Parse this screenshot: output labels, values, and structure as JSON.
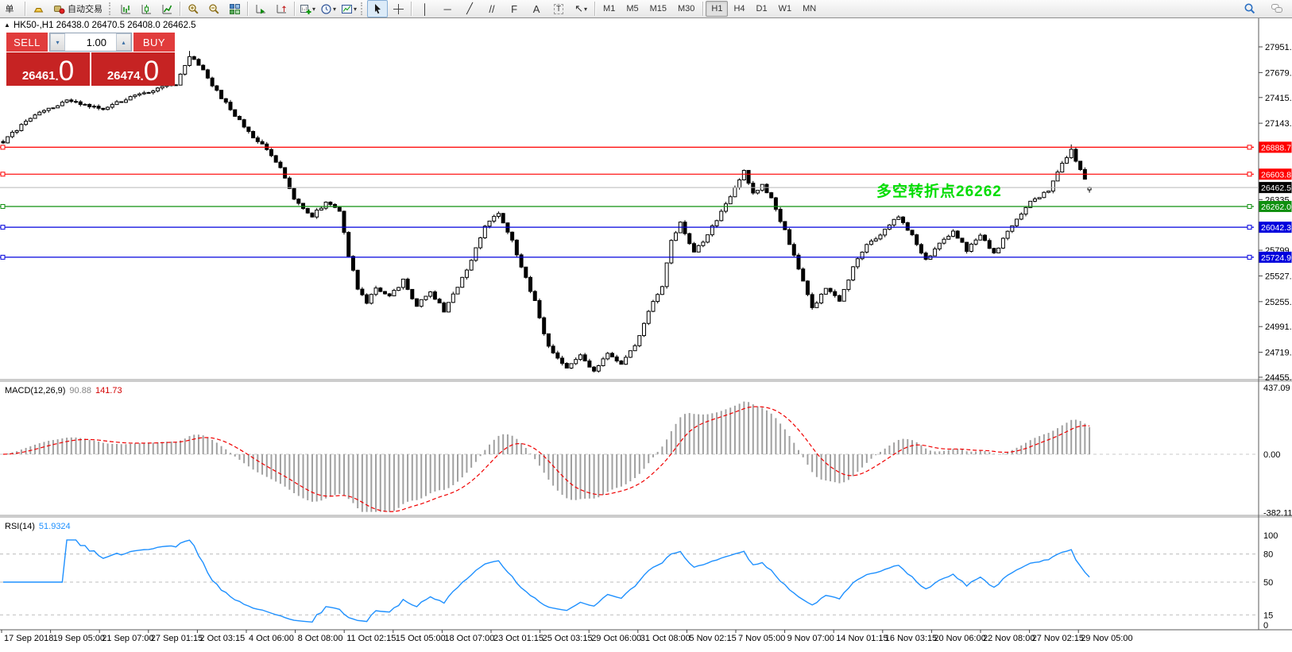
{
  "toolbar": {
    "new_order_label": "单",
    "autotrading_label": "自动交易",
    "timeframes": [
      "M1",
      "M5",
      "M15",
      "M30",
      "H1",
      "H4",
      "D1",
      "W1",
      "MN"
    ],
    "active_timeframe": "H1"
  },
  "icons": {
    "vertical_line": "│",
    "horizontal_line": "─",
    "trendline": "╱",
    "channel": "//",
    "fibonacci": "F",
    "text": "A",
    "text_label": "T",
    "arrows": "↖",
    "caret": "▾",
    "collapse": "▲",
    "spin_down": "▾",
    "spin_up": "▴"
  },
  "chart_header": {
    "title": "HK50-,H1 26438.0 26470.5 26408.0 26462.5"
  },
  "trade_panel": {
    "sell_label": "SELL",
    "buy_label": "BUY",
    "volume_value": "1.00",
    "sell_price_prefix": "26461",
    "sell_price_big": "0",
    "buy_price_prefix": "26474",
    "buy_price_big": "0",
    "decimal": "."
  },
  "annotation": {
    "text": "多空转折点26262",
    "color": "#00dd00"
  },
  "indicators": {
    "macd": {
      "name": "MACD(12,26,9)",
      "main_value": "90.88",
      "signal_value": "141.73",
      "scale": [
        {
          "label": "437.09",
          "value": 437.09
        },
        {
          "label": "0.00",
          "value": 0
        },
        {
          "label": "-382.11",
          "value": -382.11
        }
      ]
    },
    "rsi": {
      "name": "RSI(14)",
      "value": "51.9324",
      "scale": [
        {
          "label": "100",
          "value": 100
        },
        {
          "label": "80",
          "value": 80
        },
        {
          "label": "50",
          "value": 50
        },
        {
          "label": "15",
          "value": 15
        },
        {
          "label": "0",
          "value": 0
        }
      ],
      "levels": [
        80,
        50,
        15
      ]
    }
  },
  "price_axis": {
    "ticks": [
      {
        "label": "27951.0",
        "price": 27951
      },
      {
        "label": "27679.0",
        "price": 27679
      },
      {
        "label": "27415.0",
        "price": 27415
      },
      {
        "label": "27143.0",
        "price": 27143
      },
      {
        "label": "26335.0",
        "price": 26335
      },
      {
        "label": "25799.0",
        "price": 25799
      },
      {
        "label": "25527.0",
        "price": 25527
      },
      {
        "label": "25255.0",
        "price": 25255
      },
      {
        "label": "24991.0",
        "price": 24991
      },
      {
        "label": "24719.0",
        "price": 24719
      },
      {
        "label": "24455.0",
        "price": 24455
      }
    ]
  },
  "price_labels": [
    {
      "label": "26888.7",
      "price": 26888.7,
      "color": "#ff0000",
      "line": "#ff0000",
      "type": "resistance-line"
    },
    {
      "label": "26603.8",
      "price": 26603.8,
      "color": "#ff0000",
      "line": "#ff0000",
      "type": "resistance-line"
    },
    {
      "label": "26462.5",
      "price": 26462.5,
      "color": "#000000",
      "line": "#b8b8b8",
      "type": "current-price"
    },
    {
      "label": "26262.0",
      "price": 26262.0,
      "color": "#0f8f0f",
      "line": "#0f8f0f",
      "type": "pivot-line"
    },
    {
      "label": "26042.3",
      "price": 26042.3,
      "color": "#0000dd",
      "line": "#0000dd",
      "type": "support-line"
    },
    {
      "label": "25724.9",
      "price": 25724.9,
      "color": "#0000dd",
      "line": "#0000dd",
      "type": "support-line"
    }
  ],
  "time_axis": {
    "labels": [
      "17 Sep 2018",
      "19 Sep 05:00",
      "21 Sep 07:00",
      "27 Sep 01:15",
      "2 Oct 03:15",
      "4 Oct 06:00",
      "8 Oct 08:00",
      "11 Oct 02:15",
      "15 Oct 05:00",
      "18 Oct 07:00",
      "23 Oct 01:15",
      "25 Oct 03:15",
      "29 Oct 06:00",
      "31 Oct 08:00",
      "5 Nov 02:15",
      "7 Nov 05:00",
      "9 Nov 07:00",
      "14 Nov 01:15",
      "16 Nov 03:15",
      "20 Nov 06:00",
      "22 Nov 08:00",
      "27 Nov 02:15",
      "29 Nov 05:00"
    ]
  },
  "chart_data": {
    "type": "candlestick",
    "symbol": "HK50-",
    "timeframe": "H1",
    "title": "HK50-,H1",
    "ohlc_current": {
      "open": 26438.0,
      "high": 26470.5,
      "low": 26408.0,
      "close": 26462.5
    },
    "bid": 26461.0,
    "ask": 26474.0,
    "y_axis_range": [
      24455,
      27951
    ],
    "visible_range": [
      "17 Sep 2018",
      "29 Nov 2018"
    ],
    "bars_count": 240,
    "price_anchors": [
      [
        0,
        26950
      ],
      [
        6,
        27200
      ],
      [
        14,
        27380
      ],
      [
        22,
        27300
      ],
      [
        30,
        27450
      ],
      [
        38,
        27560
      ],
      [
        41,
        27860
      ],
      [
        44,
        27700
      ],
      [
        47,
        27480
      ],
      [
        51,
        27230
      ],
      [
        55,
        26990
      ],
      [
        58,
        26870
      ],
      [
        61,
        26660
      ],
      [
        64,
        26350
      ],
      [
        68,
        26160
      ],
      [
        71,
        26310
      ],
      [
        74,
        26210
      ],
      [
        76,
        25750
      ],
      [
        78,
        25400
      ],
      [
        80,
        25250
      ],
      [
        82,
        25390
      ],
      [
        85,
        25300
      ],
      [
        88,
        25480
      ],
      [
        91,
        25210
      ],
      [
        94,
        25360
      ],
      [
        97,
        25160
      ],
      [
        100,
        25400
      ],
      [
        103,
        25700
      ],
      [
        106,
        26060
      ],
      [
        109,
        26200
      ],
      [
        112,
        25900
      ],
      [
        115,
        25500
      ],
      [
        117,
        25260
      ],
      [
        119,
        24900
      ],
      [
        121,
        24700
      ],
      [
        124,
        24550
      ],
      [
        127,
        24690
      ],
      [
        130,
        24520
      ],
      [
        133,
        24710
      ],
      [
        136,
        24600
      ],
      [
        139,
        24780
      ],
      [
        142,
        25150
      ],
      [
        145,
        25430
      ],
      [
        147,
        25900
      ],
      [
        149,
        26090
      ],
      [
        152,
        25780
      ],
      [
        155,
        25960
      ],
      [
        158,
        26210
      ],
      [
        161,
        26450
      ],
      [
        163,
        26650
      ],
      [
        165,
        26400
      ],
      [
        167,
        26490
      ],
      [
        169,
        26340
      ],
      [
        172,
        26000
      ],
      [
        175,
        25600
      ],
      [
        178,
        25180
      ],
      [
        181,
        25410
      ],
      [
        184,
        25260
      ],
      [
        187,
        25610
      ],
      [
        190,
        25860
      ],
      [
        194,
        26010
      ],
      [
        197,
        26160
      ],
      [
        200,
        25950
      ],
      [
        203,
        25700
      ],
      [
        206,
        25860
      ],
      [
        209,
        26010
      ],
      [
        212,
        25800
      ],
      [
        215,
        25960
      ],
      [
        218,
        25760
      ],
      [
        222,
        26060
      ],
      [
        226,
        26310
      ],
      [
        230,
        26430
      ],
      [
        233,
        26710
      ],
      [
        235,
        26860
      ],
      [
        237,
        26640
      ],
      [
        239,
        26462.5
      ]
    ],
    "levels": [
      {
        "price": 26888.7,
        "color": "#ff0000"
      },
      {
        "price": 26603.8,
        "color": "#ff0000"
      },
      {
        "price": 26262.0,
        "color": "#0f8f0f"
      },
      {
        "price": 26042.3,
        "color": "#0000dd"
      },
      {
        "price": 25724.9,
        "color": "#0000dd"
      }
    ],
    "indicators": [
      {
        "type": "macd",
        "params": [
          12,
          26,
          9
        ],
        "last_values": [
          90.88,
          141.73
        ],
        "axis_range": [
          -382.11,
          437.09
        ]
      },
      {
        "type": "rsi",
        "params": [
          14
        ],
        "last_value": 51.9324,
        "axis_range": [
          0,
          100
        ],
        "levels": [
          15,
          50,
          80
        ]
      }
    ]
  }
}
